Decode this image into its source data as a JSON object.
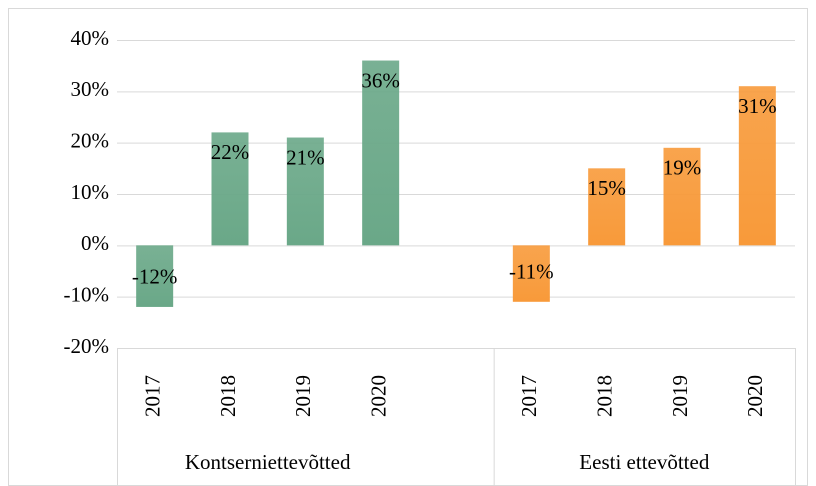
{
  "chart_data": {
    "type": "bar",
    "ylim": [
      -20,
      40
    ],
    "yticks": [
      {
        "value": -20,
        "label": "-20%"
      },
      {
        "value": -10,
        "label": "-10%"
      },
      {
        "value": 0,
        "label": "0%"
      },
      {
        "value": 10,
        "label": "10%"
      },
      {
        "value": 20,
        "label": "20%"
      },
      {
        "value": 30,
        "label": "30%"
      },
      {
        "value": 40,
        "label": "40%"
      }
    ],
    "grid": true,
    "groups": [
      {
        "label": "Kontserniettevõtted",
        "color": "#6aa888",
        "categories": [
          "2017",
          "2018",
          "2019",
          "2020"
        ],
        "values": [
          -12,
          22,
          21,
          36
        ],
        "value_labels": [
          "-12%",
          "22%",
          "21%",
          "36%"
        ]
      },
      {
        "label": "Eesti ettevõtted",
        "color": "#f89a3a",
        "categories": [
          "2017",
          "2018",
          "2019",
          "2020"
        ],
        "values": [
          -11,
          15,
          19,
          31
        ],
        "value_labels": [
          "-11%",
          "15%",
          "19%",
          "31%"
        ]
      }
    ]
  }
}
